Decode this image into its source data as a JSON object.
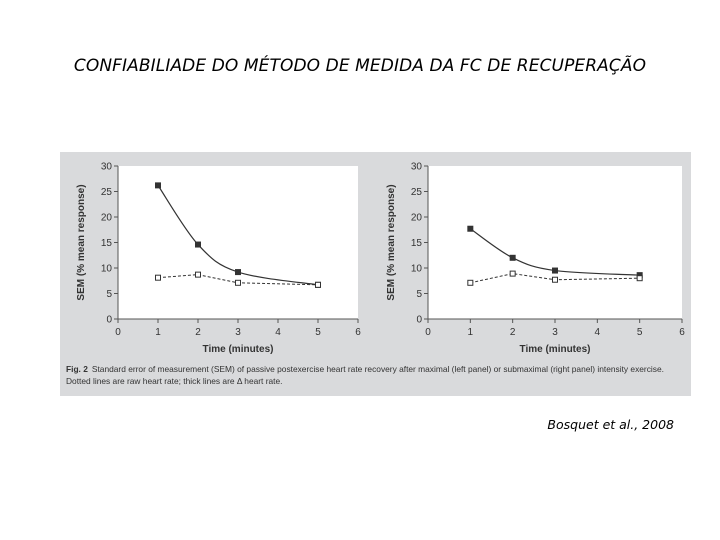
{
  "title": "CONFIABILIADE DO MÉTODO DE MEDIDA DA FC DE RECUPERAÇÃO",
  "figure": {
    "label": "Fig. 2",
    "caption": "Standard error of measurement (SEM) of passive postexercise heart rate recovery after maximal (left panel) or submaximal (right panel) intensity exercise. Dotted lines are raw heart rate; thick lines are Δ heart rate."
  },
  "citation": "Bosquet et al., 2008",
  "colors": {
    "panel_bg": "#d9dadc",
    "plot_bg": "#ffffff",
    "axis": "#555555",
    "line": "#333333",
    "text": "#333333"
  },
  "chart_data": [
    {
      "type": "line",
      "panel": "left",
      "title": "",
      "xlabel": "Time (minutes)",
      "ylabel": "SEM (% mean response)",
      "xlim": [
        0,
        6
      ],
      "ylim": [
        0,
        30
      ],
      "xticks": [
        0,
        1,
        2,
        3,
        4,
        5,
        6
      ],
      "yticks": [
        0,
        5,
        10,
        15,
        20,
        25,
        30
      ],
      "series": [
        {
          "name": "Δ heart rate",
          "style": "solid",
          "marker": "filled-square",
          "x": [
            1,
            2,
            3,
            5
          ],
          "values": [
            26.2,
            14.6,
            9.2,
            6.7
          ]
        },
        {
          "name": "Raw heart rate",
          "style": "dotted",
          "marker": "open-square",
          "x": [
            1,
            2,
            3,
            5
          ],
          "values": [
            8.1,
            8.7,
            7.1,
            6.7
          ]
        }
      ]
    },
    {
      "type": "line",
      "panel": "right",
      "title": "",
      "xlabel": "Time (minutes)",
      "ylabel": "SEM (% mean response)",
      "xlim": [
        0,
        6
      ],
      "ylim": [
        0,
        30
      ],
      "xticks": [
        0,
        1,
        2,
        3,
        4,
        5,
        6
      ],
      "yticks": [
        0,
        5,
        10,
        15,
        20,
        25,
        30
      ],
      "series": [
        {
          "name": "Δ heart rate",
          "style": "solid",
          "marker": "filled-square",
          "x": [
            1,
            2,
            3,
            5
          ],
          "values": [
            17.7,
            12.0,
            9.5,
            8.6
          ]
        },
        {
          "name": "Raw heart rate",
          "style": "dotted",
          "marker": "open-square",
          "x": [
            1,
            2,
            3,
            5
          ],
          "values": [
            7.1,
            8.9,
            7.7,
            8.0
          ]
        }
      ]
    }
  ]
}
